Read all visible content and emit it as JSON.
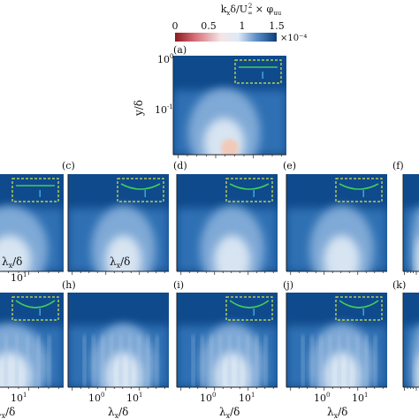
{
  "chart_data": {
    "type": "heatmap",
    "colorbar": {
      "title": "k_x δ/U_∞² × φ_uu",
      "title_parts": {
        "k": "k",
        "x_sub": "x",
        "delta_over_U": "δ/U",
        "inf_sub": "∞",
        "two_sup": "2",
        "times_phi": " × φ",
        "uu_sub": "uu"
      },
      "ticks": [
        "0",
        "0.5",
        "1",
        "1.5"
      ],
      "tick_values": [
        0,
        0.5,
        1,
        1.5
      ],
      "range": [
        0,
        1.5
      ],
      "multiplier": "×10⁻⁴",
      "colormap": "red-white-blue",
      "colors": {
        "low": "#8b1a1f",
        "mid": "#f3f5f8",
        "high": "#0b3d7a"
      }
    },
    "x_axis": {
      "label": "λ_x/δ",
      "scale": "log",
      "ticks": [
        "10⁰",
        "10¹"
      ]
    },
    "y_axis": {
      "label": "y/δ",
      "scale": "log",
      "ticks": [
        "10⁰",
        "10⁻¹"
      ]
    },
    "panels": [
      {
        "id": "a",
        "label": "(a)",
        "inset": "flat",
        "bright_low_x": 0.55
      },
      {
        "id": "b",
        "label": "",
        "inset": "flat"
      },
      {
        "id": "c",
        "label": "(c)",
        "inset": "convex"
      },
      {
        "id": "d",
        "label": "(d)",
        "inset": "convex"
      },
      {
        "id": "e",
        "label": "(e)",
        "inset": "convex"
      },
      {
        "id": "f",
        "label": "(f)",
        "inset": "none"
      },
      {
        "id": "g",
        "label": "",
        "inset": "concave"
      },
      {
        "id": "h",
        "label": "(h)",
        "inset": "none"
      },
      {
        "id": "i",
        "label": "(i)",
        "inset": "concave"
      },
      {
        "id": "j",
        "label": "(j)",
        "inset": "concave"
      },
      {
        "id": "k",
        "label": "(k)",
        "inset": "none"
      }
    ]
  },
  "labels": {
    "xlabel": "λ_x/δ",
    "ylabel": "y/δ"
  }
}
